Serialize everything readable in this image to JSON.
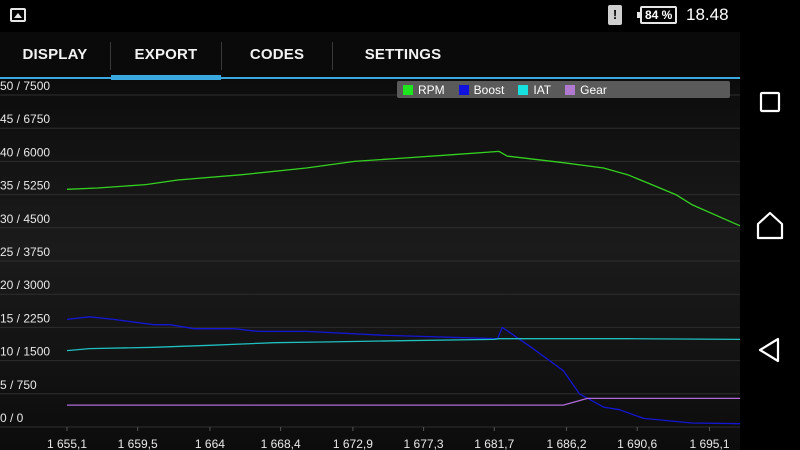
{
  "status": {
    "sim_glyph": "!",
    "battery_text": "84 %",
    "battery_level": 0.84,
    "time": "18.48"
  },
  "tabs": [
    {
      "label": "DISPLAY",
      "active": false
    },
    {
      "label": "EXPORT",
      "active": true
    },
    {
      "label": "CODES",
      "active": false
    },
    {
      "label": "SETTINGS",
      "active": false
    }
  ],
  "colors": {
    "accent": "#39a9e0",
    "rpm": "#33d11f",
    "boost": "#1416d4",
    "iat": "#1fbfbf",
    "gear": "#b06ad8"
  },
  "legend": [
    {
      "label": "RPM",
      "color": "#1ee51e"
    },
    {
      "label": "Boost",
      "color": "#1212e0"
    },
    {
      "label": "IAT",
      "color": "#16e0e0"
    },
    {
      "label": "Gear",
      "color": "#b07ad0"
    }
  ],
  "nav": {
    "recents": "recents-icon",
    "home": "home-icon",
    "back": "back-icon"
  },
  "chart_data": {
    "type": "line",
    "legend_position": "top-right",
    "grid": true,
    "y_ticks": [
      "0 / 0",
      "5 / 750",
      "10 / 1500",
      "15 / 2250",
      "20 / 3000",
      "25 / 3750",
      "30 / 4500",
      "35 / 5250",
      "40 / 6000",
      "45 / 6750",
      "50 / 7500"
    ],
    "ylim": [
      0,
      50
    ],
    "x_ticks": [
      "1 655,1",
      "1 659,5",
      "1 664",
      "1 668,4",
      "1 672,9",
      "1 677,3",
      "1 681,7",
      "1 686,2",
      "1 690,6",
      "1 695,1"
    ],
    "xlim": [
      1655.1,
      1697.0
    ],
    "series": [
      {
        "name": "RPM",
        "x": [
          1655.1,
          1657.0,
          1660.0,
          1662.0,
          1666.0,
          1670.0,
          1673.0,
          1676.0,
          1679.0,
          1682.0,
          1682.5,
          1686.0,
          1688.5,
          1690.0,
          1691.5,
          1693.0,
          1694.0,
          1697.0
        ],
        "y": [
          35.8,
          36.0,
          36.5,
          37.2,
          38.0,
          39.0,
          40.0,
          40.5,
          41.0,
          41.5,
          40.8,
          39.8,
          39.0,
          38.0,
          36.5,
          35.0,
          33.5,
          30.3
        ]
      },
      {
        "name": "Boost",
        "x": [
          1655.1,
          1656.5,
          1658.0,
          1660.5,
          1661.5,
          1663.0,
          1665.5,
          1667.0,
          1670.0,
          1675.0,
          1681.9,
          1682.2,
          1684.0,
          1686.0,
          1687.0,
          1688.5,
          1689.5,
          1691.0,
          1694.0,
          1697.0
        ],
        "y": [
          16.2,
          16.6,
          16.2,
          15.4,
          15.4,
          14.8,
          14.8,
          14.4,
          14.4,
          13.8,
          13.3,
          15.0,
          12.0,
          8.5,
          5.0,
          3.0,
          2.6,
          1.3,
          0.6,
          0.5
        ]
      },
      {
        "name": "IAT",
        "x": [
          1655.1,
          1656.5,
          1660.5,
          1664.0,
          1666.0,
          1668.0,
          1671.0,
          1676.0,
          1681.7,
          1682.0,
          1686.0,
          1688.0,
          1690.0,
          1697.0
        ],
        "y": [
          11.5,
          11.8,
          12.0,
          12.3,
          12.5,
          12.7,
          12.8,
          13.0,
          13.2,
          13.3,
          13.3,
          13.3,
          13.3,
          13.2
        ]
      },
      {
        "name": "Gear",
        "x": [
          1655.1,
          1686.0,
          1687.5,
          1697.0
        ],
        "y": [
          3.3,
          3.3,
          4.3,
          4.3
        ]
      }
    ]
  }
}
